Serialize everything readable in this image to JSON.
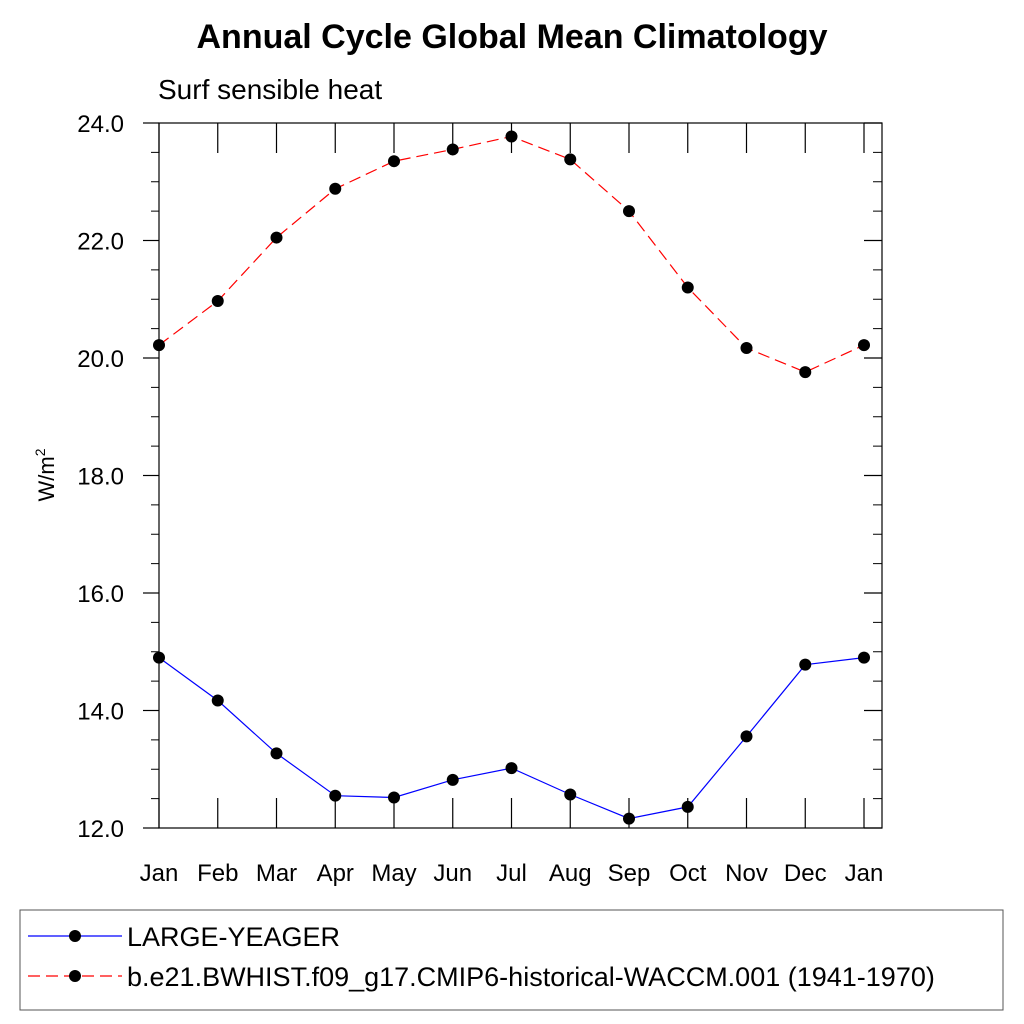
{
  "chart_data": {
    "type": "line",
    "title": "Annual Cycle Global Mean Climatology",
    "subtitle": "Surf sensible heat",
    "ylabel_base": "W/m",
    "ylabel_superscript": "2",
    "ylim": [
      12.0,
      24.0
    ],
    "yticks": [
      12.0,
      14.0,
      16.0,
      18.0,
      20.0,
      22.0,
      24.0
    ],
    "ytick_labels": [
      "12.0",
      "14.0",
      "16.0",
      "18.0",
      "20.0",
      "22.0",
      "24.0"
    ],
    "y_minor_step": 0.5,
    "categories": [
      "Jan",
      "Feb",
      "Mar",
      "Apr",
      "May",
      "Jun",
      "Jul",
      "Aug",
      "Sep",
      "Oct",
      "Nov",
      "Dec",
      "Jan"
    ],
    "grid": false,
    "legend_position": "bottom",
    "series": [
      {
        "name": "LARGE-YEAGER",
        "color": "#0000ff",
        "line_style": "solid",
        "marker": "filled-circle",
        "values": [
          14.9,
          14.17,
          13.27,
          12.55,
          12.52,
          12.82,
          13.02,
          12.57,
          12.16,
          12.36,
          13.56,
          14.78,
          14.9
        ]
      },
      {
        "name": "b.e21.BWHIST.f09_g17.CMIP6-historical-WACCM.001 (1941-1970)",
        "color": "#ff0000",
        "line_style": "dashed",
        "marker": "filled-circle",
        "values": [
          20.22,
          20.97,
          22.05,
          22.88,
          23.35,
          23.55,
          23.77,
          23.38,
          22.5,
          21.2,
          20.17,
          19.76,
          20.22
        ]
      }
    ]
  }
}
